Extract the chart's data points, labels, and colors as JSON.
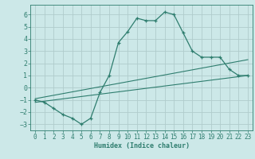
{
  "xlabel": "Humidex (Indice chaleur)",
  "ylabel": "",
  "bg_color": "#cce8e8",
  "line_color": "#2e7d6e",
  "grid_color": "#b8d8d8",
  "xlim": [
    -0.5,
    23.5
  ],
  "ylim": [
    -3.5,
    6.8
  ],
  "yticks": [
    -3,
    -2,
    -1,
    0,
    1,
    2,
    3,
    4,
    5,
    6
  ],
  "xticks": [
    0,
    1,
    2,
    3,
    4,
    5,
    6,
    7,
    8,
    9,
    10,
    11,
    12,
    13,
    14,
    15,
    16,
    17,
    18,
    19,
    20,
    21,
    22,
    23
  ],
  "zigzag_x": [
    0,
    1,
    2,
    3,
    4,
    5,
    6,
    7,
    8,
    9,
    10,
    11,
    12,
    13,
    14,
    15,
    16,
    17,
    18,
    19,
    20,
    21,
    22,
    23
  ],
  "zigzag_y": [
    -1.0,
    -1.2,
    -1.7,
    -2.2,
    -2.5,
    -3.0,
    -2.5,
    -0.4,
    1.0,
    3.7,
    4.6,
    5.7,
    5.5,
    5.5,
    6.2,
    6.0,
    4.5,
    3.0,
    2.5,
    2.5,
    2.5,
    1.5,
    1.0,
    1.0
  ],
  "line1_x": [
    0,
    23
  ],
  "line1_y": [
    -1.2,
    1.0
  ],
  "line2_x": [
    0,
    23
  ],
  "line2_y": [
    -0.9,
    2.3
  ],
  "tick_fontsize": 5.5,
  "xlabel_fontsize": 6.0
}
